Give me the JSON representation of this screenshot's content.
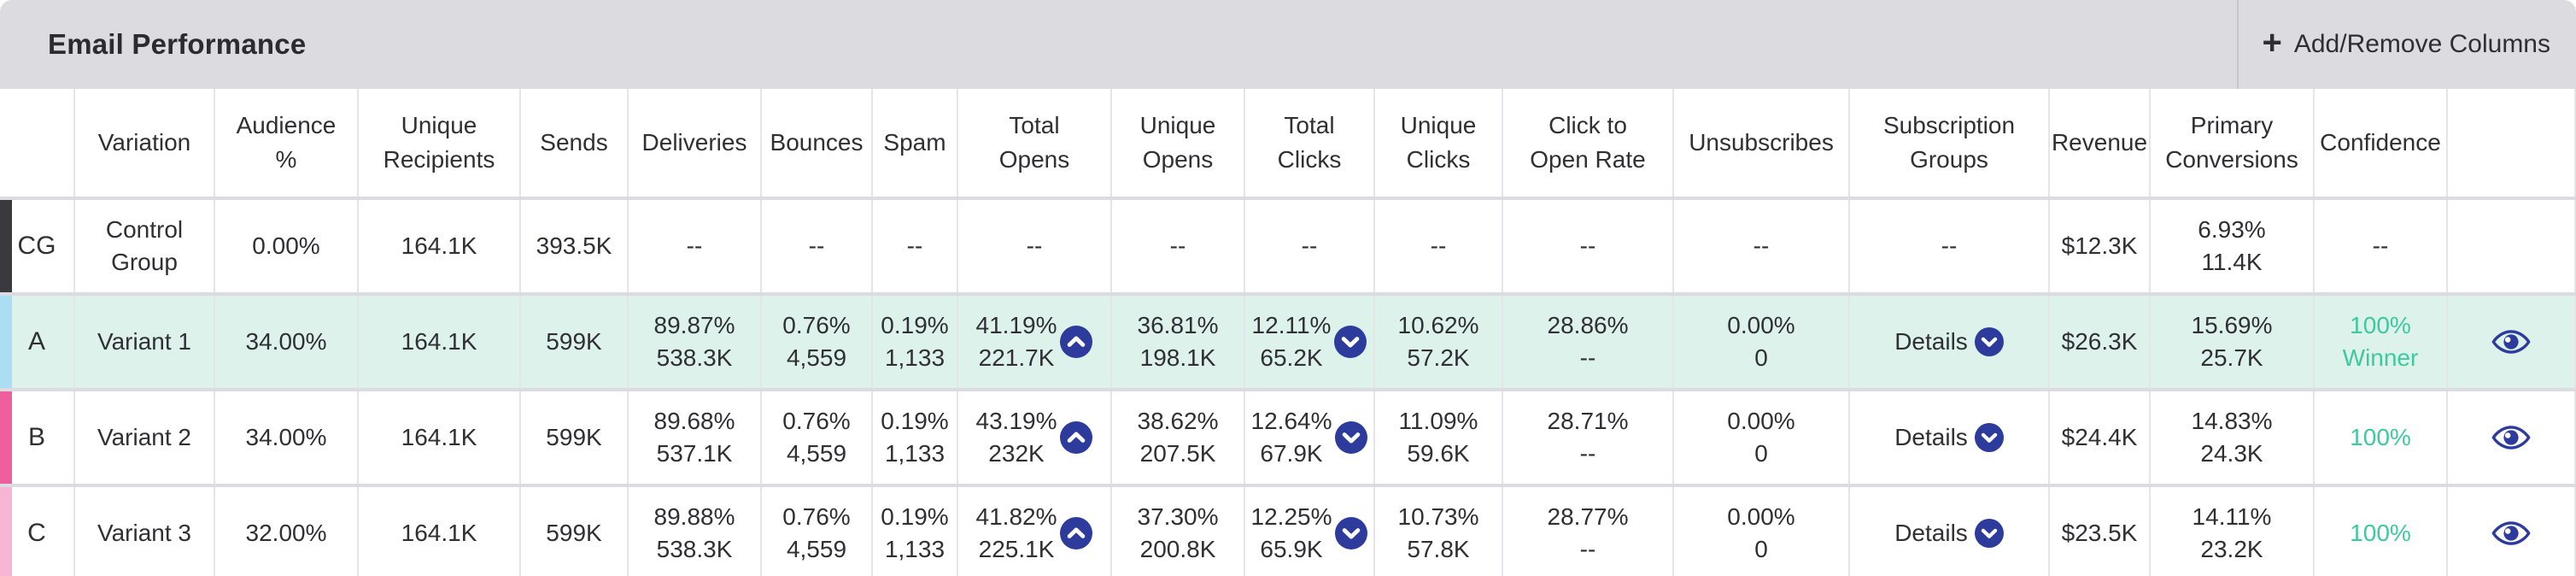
{
  "header": {
    "title": "Email Performance",
    "add_remove_columns": {
      "plus": "+",
      "label": "Add/Remove Columns"
    }
  },
  "colors": {
    "winner_green": "#3ec89e",
    "icon_navy": "#2d3c9c",
    "header_bg": "#dcdbe0",
    "row_a_bg": "#def2ec",
    "bar_cg": "#3a3a3e",
    "bar_a": "#abddf4",
    "bar_b": "#ef5f9e",
    "bar_c": "#f9b5d4"
  },
  "table": {
    "columns": [
      {
        "key": "badge",
        "label": ""
      },
      {
        "key": "variation",
        "label": "Variation"
      },
      {
        "key": "audience",
        "label": "Audience %"
      },
      {
        "key": "unique_recipients",
        "label": "Unique Recipients"
      },
      {
        "key": "sends",
        "label": "Sends"
      },
      {
        "key": "deliveries",
        "label": "Deliveries"
      },
      {
        "key": "bounces",
        "label": "Bounces"
      },
      {
        "key": "spam",
        "label": "Spam"
      },
      {
        "key": "total_opens",
        "label": "Total Opens"
      },
      {
        "key": "unique_opens",
        "label": "Unique Opens"
      },
      {
        "key": "total_clicks",
        "label": "Total Clicks"
      },
      {
        "key": "unique_clicks",
        "label": "Unique Clicks"
      },
      {
        "key": "click_to_open_rate",
        "label": "Click to Open Rate"
      },
      {
        "key": "unsubscribes",
        "label": "Unsubscribes"
      },
      {
        "key": "subscription_groups",
        "label": "Subscription Groups"
      },
      {
        "key": "revenue",
        "label": "Revenue"
      },
      {
        "key": "primary_conversions",
        "label": "Primary Conversions"
      },
      {
        "key": "confidence",
        "label": "Confidence"
      },
      {
        "key": "actions",
        "label": ""
      }
    ],
    "rows": [
      {
        "badge": "CG",
        "bar_color": "#3a3a3e",
        "bg": "#ffffff",
        "variation": "Control Group",
        "audience": "0.00%",
        "unique_recipients": "164.1K",
        "sends": "393.5K",
        "deliveries": [
          "--"
        ],
        "bounces": [
          "--"
        ],
        "spam": [
          "--"
        ],
        "total_opens": {
          "lines": [
            "--"
          ]
        },
        "unique_opens": [
          "--"
        ],
        "total_clicks": {
          "lines": [
            "--"
          ]
        },
        "unique_clicks": [
          "--"
        ],
        "click_to_open_rate": [
          "--"
        ],
        "unsubscribes": [
          "--"
        ],
        "subscription_groups": {
          "text": "--"
        },
        "revenue": "$12.3K",
        "primary_conversions": [
          "6.93%",
          "11.4K"
        ],
        "confidence": {
          "lines": [
            "--"
          ],
          "highlight": false
        },
        "eye": false
      },
      {
        "badge": "A",
        "bar_color": "#abddf4",
        "bg": "#def2ec",
        "variation": "Variant 1",
        "audience": "34.00%",
        "unique_recipients": "164.1K",
        "sends": "599K",
        "deliveries": [
          "89.87%",
          "538.3K"
        ],
        "bounces": [
          "0.76%",
          "4,559"
        ],
        "spam": [
          "0.19%",
          "1,133"
        ],
        "total_opens": {
          "lines": [
            "41.19%",
            "221.7K"
          ],
          "icon": "chevron-up-circle"
        },
        "unique_opens": [
          "36.81%",
          "198.1K"
        ],
        "total_clicks": {
          "lines": [
            "12.11%",
            "65.2K"
          ],
          "icon": "chevron-down-circle"
        },
        "unique_clicks": [
          "10.62%",
          "57.2K"
        ],
        "click_to_open_rate": [
          "28.86%",
          "--"
        ],
        "unsubscribes": [
          "0.00%",
          "0"
        ],
        "subscription_groups": {
          "text": "Details",
          "icon": "chevron-down-circle"
        },
        "revenue": "$26.3K",
        "primary_conversions": [
          "15.69%",
          "25.7K"
        ],
        "confidence": {
          "lines": [
            "100%",
            "Winner"
          ],
          "highlight": true
        },
        "eye": true
      },
      {
        "badge": "B",
        "bar_color": "#ef5f9e",
        "bg": "#ffffff",
        "variation": "Variant 2",
        "audience": "34.00%",
        "unique_recipients": "164.1K",
        "sends": "599K",
        "deliveries": [
          "89.68%",
          "537.1K"
        ],
        "bounces": [
          "0.76%",
          "4,559"
        ],
        "spam": [
          "0.19%",
          "1,133"
        ],
        "total_opens": {
          "lines": [
            "43.19%",
            "232K"
          ],
          "icon": "chevron-up-circle"
        },
        "unique_opens": [
          "38.62%",
          "207.5K"
        ],
        "total_clicks": {
          "lines": [
            "12.64%",
            "67.9K"
          ],
          "icon": "chevron-down-circle"
        },
        "unique_clicks": [
          "11.09%",
          "59.6K"
        ],
        "click_to_open_rate": [
          "28.71%",
          "--"
        ],
        "unsubscribes": [
          "0.00%",
          "0"
        ],
        "subscription_groups": {
          "text": "Details",
          "icon": "chevron-down-circle"
        },
        "revenue": "$24.4K",
        "primary_conversions": [
          "14.83%",
          "24.3K"
        ],
        "confidence": {
          "lines": [
            "100%"
          ],
          "highlight": true
        },
        "eye": true
      },
      {
        "badge": "C",
        "bar_color": "#f9b5d4",
        "bg": "#ffffff",
        "variation": "Variant 3",
        "audience": "32.00%",
        "unique_recipients": "164.1K",
        "sends": "599K",
        "deliveries": [
          "89.88%",
          "538.3K"
        ],
        "bounces": [
          "0.76%",
          "4,559"
        ],
        "spam": [
          "0.19%",
          "1,133"
        ],
        "total_opens": {
          "lines": [
            "41.82%",
            "225.1K"
          ],
          "icon": "chevron-up-circle"
        },
        "unique_opens": [
          "37.30%",
          "200.8K"
        ],
        "total_clicks": {
          "lines": [
            "12.25%",
            "65.9K"
          ],
          "icon": "chevron-down-circle"
        },
        "unique_clicks": [
          "10.73%",
          "57.8K"
        ],
        "click_to_open_rate": [
          "28.77%",
          "--"
        ],
        "unsubscribes": [
          "0.00%",
          "0"
        ],
        "subscription_groups": {
          "text": "Details",
          "icon": "chevron-down-circle"
        },
        "revenue": "$23.5K",
        "primary_conversions": [
          "14.11%",
          "23.2K"
        ],
        "confidence": {
          "lines": [
            "100%"
          ],
          "highlight": true
        },
        "eye": true
      }
    ]
  }
}
